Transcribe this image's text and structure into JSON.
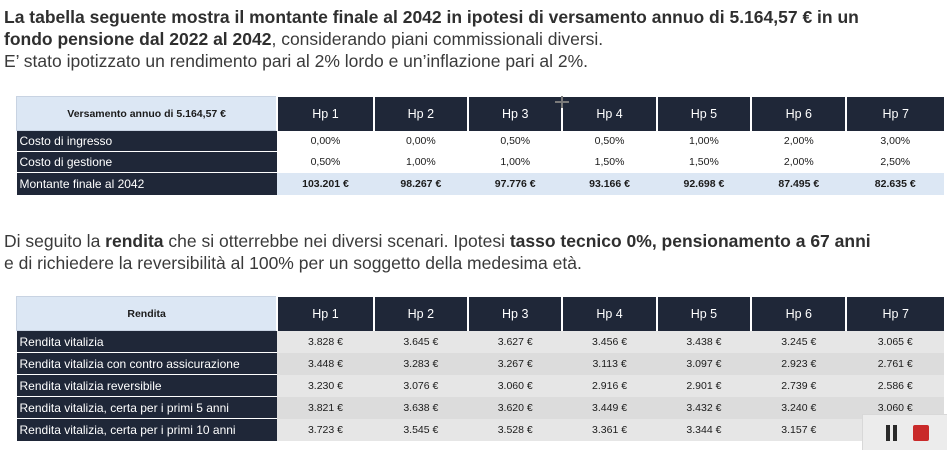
{
  "intro": {
    "l1_a": "La tabella seguente mostra il ",
    "l1_hl": "montante finale al 2042",
    "l1_b": " in ipotesi di versamento annuo di 5.164,57 € in un",
    "l2_a": "fondo pensione dal 2022 al 2042",
    "l2_b": ", considerando piani commissionali diversi.",
    "l3": "E’ stato ipotizzato un rendimento pari al 2% lordo e un’inflazione pari al 2%."
  },
  "table1": {
    "corner": "Versamento annuo di 5.164,57 €",
    "headers": [
      "Hp 1",
      "Hp 2",
      "Hp 3",
      "Hp 4",
      "Hp 5",
      "Hp 6",
      "Hp 7"
    ],
    "rows": [
      {
        "label": "Costo di ingresso",
        "values": [
          "0,00%",
          "0,00%",
          "0,50%",
          "0,50%",
          "1,00%",
          "2,00%",
          "3,00%"
        ]
      },
      {
        "label": "Costo di gestione",
        "values": [
          "0,50%",
          "1,00%",
          "1,00%",
          "1,50%",
          "1,50%",
          "2,00%",
          "2,50%"
        ]
      },
      {
        "label": "Montante finale al 2042",
        "values": [
          "103.201 €",
          "98.267 €",
          "97.776 €",
          "93.166 €",
          "92.698 €",
          "87.495 €",
          "82.635 €"
        ]
      }
    ]
  },
  "intro2": {
    "l1_a": "Di seguito la ",
    "l1_hl": "rendita",
    "l1_b": " che si otterrebbe nei diversi scenari. Ipotesi ",
    "l1_bold": "tasso tecnico 0%, pensionamento a 67 anni",
    "l2": "e di richiedere la reversibilità al 100% per un soggetto della medesima età."
  },
  "table2": {
    "corner": "Rendita",
    "headers": [
      "Hp 1",
      "Hp 2",
      "Hp 3",
      "Hp 4",
      "Hp 5",
      "Hp 6",
      "Hp 7"
    ],
    "rows": [
      {
        "label": "Rendita vitalizia",
        "values": [
          "3.828 €",
          "3.645 €",
          "3.627 €",
          "3.456 €",
          "3.438 €",
          "3.245 €",
          "3.065 €"
        ]
      },
      {
        "label": "Rendita vitalizia con contro assicurazione",
        "values": [
          "3.448 €",
          "3.283 €",
          "3.267 €",
          "3.113 €",
          "3.097 €",
          "2.923 €",
          "2.761 €"
        ]
      },
      {
        "label": "Rendita vitalizia reversibile",
        "values": [
          "3.230 €",
          "3.076 €",
          "3.060 €",
          "2.916 €",
          "2.901 €",
          "2.739 €",
          "2.586 €"
        ]
      },
      {
        "label": "Rendita vitalizia, certa per i primi 5 anni",
        "values": [
          "3.821 €",
          "3.638 €",
          "3.620 €",
          "3.449 €",
          "3.432 €",
          "3.240 €",
          "3.060 €"
        ]
      },
      {
        "label": "Rendita vitalizia, certa per i primi 10 anni",
        "values": [
          "3.723 €",
          "3.545 €",
          "3.528 €",
          "3.361 €",
          "3.344 €",
          "3.157 €",
          ""
        ]
      }
    ]
  },
  "player": {
    "pause_icon": "pause-icon",
    "stop_icon": "stop-icon",
    "stop_color": "#c92a2a"
  },
  "colors": {
    "accent_text": "#1f6fb5",
    "header_dark": "#1f2738",
    "header_light": "#dce7f4"
  }
}
